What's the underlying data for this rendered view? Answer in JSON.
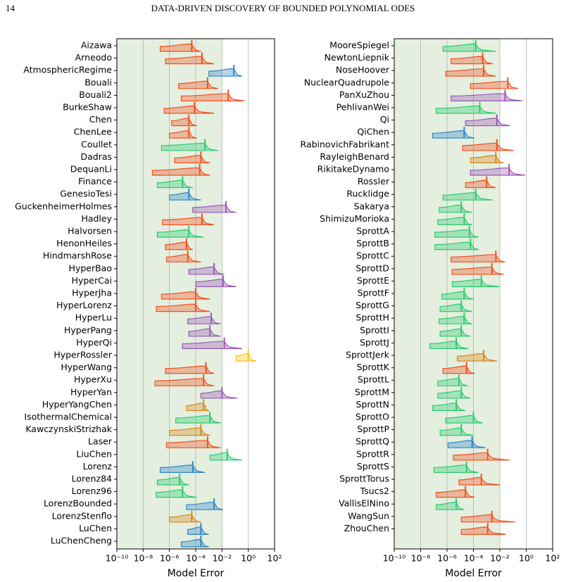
{
  "header": {
    "page_number": "14",
    "title": "DATA-DRIVEN DISCOVERY OF BOUNDED POLYNOMIAL ODES"
  },
  "chart_data": [
    {
      "type": "ridge",
      "xlabel": "Model Error",
      "xlim": [
        1e-10,
        100
      ],
      "log_x": true,
      "grid": "x",
      "shade": [
        1e-10,
        0.01
      ],
      "shade_color": "#e4efdf",
      "xticks": [
        {
          "value": 1e-10,
          "label": "10⁻¹⁰"
        },
        {
          "value": 1e-08,
          "label": "10⁻⁸"
        },
        {
          "value": 1e-06,
          "label": "10⁻⁶"
        },
        {
          "value": 0.0001,
          "label": "10⁻⁴"
        },
        {
          "value": 0.01,
          "label": "10⁻²"
        },
        {
          "value": 1,
          "label": "10⁰"
        },
        {
          "value": 100,
          "label": "10²"
        }
      ],
      "categories": [
        "Aizawa",
        "Arneodo",
        "AtmosphericRegime",
        "Bouali",
        "Bouali2",
        "BurkeShaw",
        "Chen",
        "ChenLee",
        "Coullet",
        "Dadras",
        "DequanLi",
        "Finance",
        "GenesioTesi",
        "GuckenheimerHolmes",
        "Hadley",
        "Halvorsen",
        "HenonHeiles",
        "HindmarshRose",
        "HyperBao",
        "HyperCai",
        "HyperJha",
        "HyperLorenz",
        "HyperLu",
        "HyperPang",
        "HyperQi",
        "HyperRossler",
        "HyperWang",
        "HyperXu",
        "HyperYan",
        "HyperYangChen",
        "IsothermalChemical",
        "KawczynskiStrizhak",
        "Laser",
        "LiuChen",
        "Lorenz",
        "Lorenz84",
        "Lorenz96",
        "LorenzBounded",
        "LorenzStenflo",
        "LuChen",
        "LuChenCheng"
      ],
      "colors": [
        "#f4511e",
        "#f4511e",
        "#2e86c8",
        "#f4511e",
        "#f4511e",
        "#f4511e",
        "#f4511e",
        "#f4511e",
        "#2ecc71",
        "#f4511e",
        "#f4511e",
        "#2ecc71",
        "#2e86c8",
        "#9b59b6",
        "#f4511e",
        "#2ecc71",
        "#f4511e",
        "#f4511e",
        "#9b59b6",
        "#9b59b6",
        "#f4511e",
        "#f4511e",
        "#9b59b6",
        "#9b59b6",
        "#9b59b6",
        "#f5c518",
        "#f4511e",
        "#f4511e",
        "#9b59b6",
        "#d98a1a",
        "#2ecc71",
        "#d98a1a",
        "#f4511e",
        "#2ecc71",
        "#2e86c8",
        "#2ecc71",
        "#2ecc71",
        "#2e86c8",
        "#d98a1a",
        "#2e86c8",
        "#2e86c8"
      ],
      "lows": [
        2e-07,
        5e-07,
        0.001,
        5e-06,
        8e-06,
        4e-07,
        1.5e-06,
        1e-06,
        2.5e-07,
        2.5e-06,
        5e-08,
        1.2e-07,
        1e-06,
        6e-05,
        3e-07,
        1.2e-07,
        5e-07,
        6e-07,
        3e-05,
        0.0001,
        2.5e-07,
        1e-07,
        2.5e-05,
        3e-05,
        1e-05,
        0.12,
        5e-07,
        8e-08,
        0.00025,
        2e-05,
        3e-06,
        1e-06,
        6e-07,
        0.0012,
        2e-07,
        1.2e-07,
        1e-07,
        2e-05,
        1e-06,
        2.5e-05,
        8e-06
      ],
      "medians": [
        5e-05,
        0.0003,
        0.08,
        0.0008,
        0.03,
        8e-05,
        3e-05,
        3e-05,
        0.0005,
        0.00025,
        0.0002,
        1e-05,
        3e-05,
        0.02,
        0.0003,
        3e-05,
        2e-05,
        2.5e-05,
        0.0025,
        0.012,
        0.0001,
        0.0001,
        0.0015,
        0.0012,
        0.015,
        1,
        0.0006,
        0.0004,
        0.01,
        0.0004,
        0.0012,
        0.00025,
        0.0008,
        0.025,
        6e-05,
        6e-06,
        1e-05,
        0.0025,
        5e-05,
        0.00025,
        0.00025
      ],
      "highs": [
        0.00025,
        0.0025,
        0.35,
        0.005,
        0.5,
        0.0025,
        0.00012,
        0.00012,
        0.005,
        0.0012,
        0.0012,
        6e-05,
        0.00025,
        0.12,
        0.0025,
        0.0004,
        6e-05,
        0.00025,
        0.015,
        0.12,
        0.0012,
        0.0012,
        0.008,
        0.008,
        0.35,
        4,
        0.0025,
        0.0025,
        0.15,
        0.001,
        0.008,
        0.0012,
        0.008,
        0.35,
        0.0005,
        3e-05,
        0.00012,
        0.012,
        0.00025,
        0.001,
        0.001
      ]
    },
    {
      "type": "ridge",
      "xlabel": "Model Error",
      "xlim": [
        1e-10,
        100
      ],
      "log_x": true,
      "grid": "x",
      "shade": [
        1e-10,
        0.01
      ],
      "shade_color": "#e4efdf",
      "xticks": [
        {
          "value": 1e-10,
          "label": "10⁻¹⁰"
        },
        {
          "value": 1e-08,
          "label": "10⁻⁸"
        },
        {
          "value": 1e-06,
          "label": "10⁻⁶"
        },
        {
          "value": 0.0001,
          "label": "10⁻⁴"
        },
        {
          "value": 0.01,
          "label": "10⁻²"
        },
        {
          "value": 1,
          "label": "10⁰"
        },
        {
          "value": 100,
          "label": "10²"
        }
      ],
      "categories": [
        "MooreSpiegel",
        "NewtonLiepnik",
        "NoseHoover",
        "NuclearQuadrupole",
        "PanXuZhou",
        "PehlivanWei",
        "Qi",
        "QiChen",
        "RabinovichFabrikant",
        "RayleighBenard",
        "RikitakeDynamo",
        "Rossler",
        "Rucklidge",
        "Sakarya",
        "ShimizuMorioka",
        "SprottA",
        "SprottB",
        "SprottC",
        "SprottD",
        "SprottE",
        "SprottF",
        "SprottG",
        "SprottH",
        "SprottI",
        "SprottJ",
        "SprottJerk",
        "SprottK",
        "SprottL",
        "SprottM",
        "SprottN",
        "SprottO",
        "SprottP",
        "SprottQ",
        "SprottR",
        "SprottS",
        "SprottTorus",
        "Tsucs2",
        "VallisElNino",
        "WangSun",
        "ZhouChen"
      ],
      "colors": [
        "#2ecc71",
        "#f4511e",
        "#f4511e",
        "#f4511e",
        "#9b59b6",
        "#2ecc71",
        "#9b59b6",
        "#2e86c8",
        "#f4511e",
        "#d98a1a",
        "#9b59b6",
        "#f4511e",
        "#2ecc71",
        "#2ecc71",
        "#2ecc71",
        "#2ecc71",
        "#2ecc71",
        "#f4511e",
        "#f4511e",
        "#2ecc71",
        "#2ecc71",
        "#2ecc71",
        "#2ecc71",
        "#2ecc71",
        "#2ecc71",
        "#d98a1a",
        "#f4511e",
        "#2ecc71",
        "#2ecc71",
        "#2ecc71",
        "#2ecc71",
        "#2ecc71",
        "#2e86c8",
        "#f4511e",
        "#2ecc71",
        "#f4511e",
        "#f4511e",
        "#2ecc71",
        "#f4511e",
        "#f4511e"
      ],
      "lows": [
        5e-07,
        2e-06,
        8e-07,
        6e-05,
        2e-06,
        1.5e-07,
        2.5e-05,
        8e-08,
        1.5e-05,
        6e-05,
        6e-05,
        2.5e-05,
        5e-07,
        2.5e-07,
        2e-07,
        1.2e-07,
        1.2e-07,
        2e-06,
        2.5e-06,
        2.5e-06,
        4e-07,
        3e-07,
        2.5e-07,
        3e-07,
        5e-08,
        6e-06,
        5e-07,
        2e-07,
        2e-07,
        8e-08,
        8e-07,
        3e-07,
        1.2e-06,
        3e-06,
        1e-07,
        8e-06,
        1.5e-07,
        1.5e-07,
        1.2e-05,
        1.2e-05
      ],
      "medians": [
        0.00015,
        0.0005,
        0.0006,
        0.04,
        0.025,
        0.0003,
        0.006,
        2e-05,
        0.006,
        0.005,
        0.05,
        0.001,
        0.00015,
        1.2e-05,
        2e-05,
        5e-05,
        6e-05,
        0.005,
        0.0025,
        0.0004,
        2e-05,
        1.2e-05,
        2e-05,
        1.2e-05,
        5e-06,
        0.0006,
        3e-05,
        8e-06,
        1.2e-05,
        5e-06,
        0.0001,
        1.2e-05,
        8e-05,
        0.0012,
        3e-05,
        0.0004,
        2.5e-05,
        5e-06,
        0.0025,
        0.0012
      ],
      "highs": [
        0.005,
        0.003,
        0.005,
        0.25,
        0.5,
        0.005,
        0.06,
        0.00012,
        0.12,
        0.02,
        0.8,
        0.005,
        0.003,
        8e-05,
        8e-05,
        0.00025,
        0.00025,
        0.025,
        0.02,
        0.01,
        0.0001,
        8e-05,
        8e-05,
        6e-05,
        4e-05,
        0.006,
        0.00012,
        4e-05,
        6e-05,
        2.5e-05,
        0.0005,
        0.0001,
        0.0008,
        0.06,
        0.00025,
        0.01,
        0.00012,
        2e-05,
        0.15,
        0.03
      ]
    }
  ]
}
